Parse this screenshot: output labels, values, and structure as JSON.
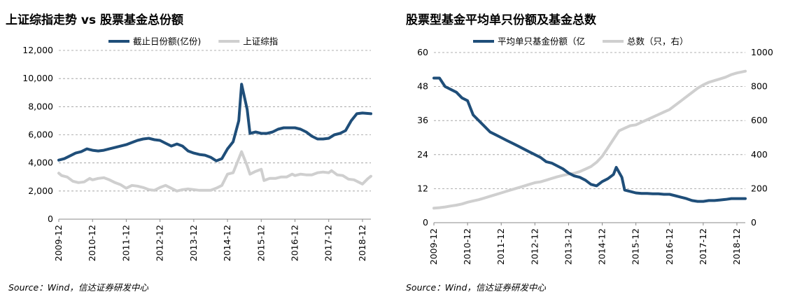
{
  "colors": {
    "dark": "#1f4e79",
    "light": "#cfcfcf",
    "grid": "#999999"
  },
  "chart_data": [
    {
      "type": "line",
      "title": "上证综指走势 vs 股票基金总份额",
      "source": "Source：Wind，信达证券研发中心",
      "x_ticks": [
        "2009-12",
        "2010-12",
        "2011-12",
        "2012-12",
        "2013-12",
        "2014-12",
        "2015-12",
        "2016-12",
        "2017-12",
        "2018-12"
      ],
      "y_ticks": [
        "12,000",
        "10,000",
        "8,000",
        "6,000",
        "4,000",
        "2,000",
        "0"
      ],
      "ylim": [
        0,
        12000
      ],
      "x_start": "2009-12",
      "x_end": "2019-03",
      "grid": true,
      "legend_position": "top",
      "series": [
        {
          "name": "截止日份额(亿份)",
          "color": "#1f4e79",
          "points": [
            [
              "2009-12",
              4200
            ],
            [
              "2010-02",
              4300
            ],
            [
              "2010-04",
              4500
            ],
            [
              "2010-06",
              4700
            ],
            [
              "2010-08",
              4800
            ],
            [
              "2010-10",
              5000
            ],
            [
              "2010-12",
              4900
            ],
            [
              "2011-02",
              4850
            ],
            [
              "2011-04",
              4900
            ],
            [
              "2011-06",
              5000
            ],
            [
              "2011-08",
              5100
            ],
            [
              "2011-10",
              5200
            ],
            [
              "2011-12",
              5300
            ],
            [
              "2012-02",
              5450
            ],
            [
              "2012-04",
              5600
            ],
            [
              "2012-06",
              5700
            ],
            [
              "2012-08",
              5750
            ],
            [
              "2012-10",
              5650
            ],
            [
              "2012-12",
              5600
            ],
            [
              "2013-02",
              5400
            ],
            [
              "2013-04",
              5200
            ],
            [
              "2013-06",
              5350
            ],
            [
              "2013-08",
              5200
            ],
            [
              "2013-10",
              4850
            ],
            [
              "2013-12",
              4700
            ],
            [
              "2014-02",
              4600
            ],
            [
              "2014-04",
              4550
            ],
            [
              "2014-06",
              4400
            ],
            [
              "2014-08",
              4150
            ],
            [
              "2014-10",
              4300
            ],
            [
              "2014-12",
              5000
            ],
            [
              "2015-02",
              5500
            ],
            [
              "2015-04",
              7000
            ],
            [
              "2015-05",
              9600
            ],
            [
              "2015-07",
              7800
            ],
            [
              "2015-08",
              6100
            ],
            [
              "2015-10",
              6200
            ],
            [
              "2015-12",
              6100
            ],
            [
              "2016-02",
              6100
            ],
            [
              "2016-04",
              6200
            ],
            [
              "2016-06",
              6400
            ],
            [
              "2016-08",
              6500
            ],
            [
              "2016-10",
              6500
            ],
            [
              "2016-12",
              6500
            ],
            [
              "2017-02",
              6400
            ],
            [
              "2017-04",
              6200
            ],
            [
              "2017-06",
              5900
            ],
            [
              "2017-08",
              5700
            ],
            [
              "2017-10",
              5700
            ],
            [
              "2017-12",
              5750
            ],
            [
              "2018-02",
              6000
            ],
            [
              "2018-04",
              6100
            ],
            [
              "2018-06",
              6300
            ],
            [
              "2018-08",
              7000
            ],
            [
              "2018-10",
              7500
            ],
            [
              "2018-12",
              7550
            ],
            [
              "2019-03",
              7500
            ]
          ]
        },
        {
          "name": "上证综指",
          "color": "#cfcfcf",
          "points": [
            [
              "2009-12",
              3270
            ],
            [
              "2010-01",
              3100
            ],
            [
              "2010-03",
              3000
            ],
            [
              "2010-05",
              2700
            ],
            [
              "2010-07",
              2600
            ],
            [
              "2010-09",
              2650
            ],
            [
              "2010-11",
              2900
            ],
            [
              "2010-12",
              2800
            ],
            [
              "2011-02",
              2900
            ],
            [
              "2011-04",
              2950
            ],
            [
              "2011-06",
              2800
            ],
            [
              "2011-08",
              2600
            ],
            [
              "2011-10",
              2450
            ],
            [
              "2011-12",
              2200
            ],
            [
              "2012-02",
              2400
            ],
            [
              "2012-04",
              2350
            ],
            [
              "2012-06",
              2250
            ],
            [
              "2012-08",
              2100
            ],
            [
              "2012-10",
              2050
            ],
            [
              "2012-12",
              2250
            ],
            [
              "2013-02",
              2400
            ],
            [
              "2013-04",
              2200
            ],
            [
              "2013-06",
              2000
            ],
            [
              "2013-08",
              2100
            ],
            [
              "2013-10",
              2150
            ],
            [
              "2013-12",
              2100
            ],
            [
              "2014-02",
              2050
            ],
            [
              "2014-04",
              2050
            ],
            [
              "2014-06",
              2050
            ],
            [
              "2014-08",
              2200
            ],
            [
              "2014-10",
              2400
            ],
            [
              "2014-12",
              3200
            ],
            [
              "2015-02",
              3300
            ],
            [
              "2015-04",
              4300
            ],
            [
              "2015-05",
              4800
            ],
            [
              "2015-07",
              3800
            ],
            [
              "2015-08",
              3200
            ],
            [
              "2015-10",
              3400
            ],
            [
              "2015-12",
              3550
            ],
            [
              "2016-01",
              2750
            ],
            [
              "2016-03",
              2900
            ],
            [
              "2016-05",
              2900
            ],
            [
              "2016-07",
              3000
            ],
            [
              "2016-09",
              3000
            ],
            [
              "2016-11",
              3200
            ],
            [
              "2016-12",
              3100
            ],
            [
              "2017-02",
              3200
            ],
            [
              "2017-04",
              3150
            ],
            [
              "2017-06",
              3150
            ],
            [
              "2017-08",
              3300
            ],
            [
              "2017-10",
              3350
            ],
            [
              "2017-12",
              3300
            ],
            [
              "2018-01",
              3450
            ],
            [
              "2018-03",
              3150
            ],
            [
              "2018-05",
              3100
            ],
            [
              "2018-07",
              2850
            ],
            [
              "2018-09",
              2800
            ],
            [
              "2018-11",
              2600
            ],
            [
              "2018-12",
              2500
            ],
            [
              "2019-02",
              2900
            ],
            [
              "2019-03",
              3050
            ]
          ]
        }
      ]
    },
    {
      "type": "line",
      "title": "股票型基金平均单只份额及基金总数",
      "source": "Source：Wind，信达证券研发中心",
      "x_ticks": [
        "2009-12",
        "2010-12",
        "2011-12",
        "2012-12",
        "2013-12",
        "2014-12",
        "2015-12",
        "2016-12",
        "2017-12",
        "2018-12"
      ],
      "y_left_ticks": [
        "60",
        "48",
        "36",
        "24",
        "12",
        "0"
      ],
      "y_right_ticks": [
        "1000",
        "800",
        "600",
        "400",
        "200",
        "0"
      ],
      "ylim_left": [
        0,
        60
      ],
      "ylim_right": [
        0,
        1000
      ],
      "x_start": "2009-12",
      "x_end": "2019-03",
      "grid": true,
      "legend_position": "top",
      "series": [
        {
          "name": "平均单只基金份额（亿",
          "color": "#1f4e79",
          "axis": "left",
          "points": [
            [
              "2009-12",
              51
            ],
            [
              "2010-02",
              51
            ],
            [
              "2010-04",
              48
            ],
            [
              "2010-06",
              47
            ],
            [
              "2010-08",
              46
            ],
            [
              "2010-10",
              44
            ],
            [
              "2010-12",
              43
            ],
            [
              "2011-02",
              38
            ],
            [
              "2011-04",
              36
            ],
            [
              "2011-06",
              34
            ],
            [
              "2011-08",
              32
            ],
            [
              "2011-10",
              31
            ],
            [
              "2011-12",
              30
            ],
            [
              "2012-02",
              29
            ],
            [
              "2012-04",
              28
            ],
            [
              "2012-06",
              27
            ],
            [
              "2012-08",
              26
            ],
            [
              "2012-10",
              25
            ],
            [
              "2012-12",
              24
            ],
            [
              "2013-02",
              23
            ],
            [
              "2013-04",
              21.5
            ],
            [
              "2013-06",
              21
            ],
            [
              "2013-08",
              20
            ],
            [
              "2013-10",
              19
            ],
            [
              "2013-12",
              17.5
            ],
            [
              "2014-02",
              16.5
            ],
            [
              "2014-04",
              16
            ],
            [
              "2014-06",
              15
            ],
            [
              "2014-08",
              13.5
            ],
            [
              "2014-10",
              13
            ],
            [
              "2014-12",
              14.5
            ],
            [
              "2015-02",
              15.5
            ],
            [
              "2015-04",
              17
            ],
            [
              "2015-05",
              19.5
            ],
            [
              "2015-07",
              16
            ],
            [
              "2015-08",
              11.5
            ],
            [
              "2015-10",
              11
            ],
            [
              "2015-12",
              10.5
            ],
            [
              "2016-02",
              10.3
            ],
            [
              "2016-04",
              10.3
            ],
            [
              "2016-06",
              10.2
            ],
            [
              "2016-08",
              10.2
            ],
            [
              "2016-10",
              10
            ],
            [
              "2016-12",
              10
            ],
            [
              "2017-02",
              9.5
            ],
            [
              "2017-04",
              9
            ],
            [
              "2017-06",
              8.5
            ],
            [
              "2017-08",
              7.8
            ],
            [
              "2017-10",
              7.5
            ],
            [
              "2017-12",
              7.5
            ],
            [
              "2018-02",
              7.8
            ],
            [
              "2018-04",
              7.8
            ],
            [
              "2018-06",
              8
            ],
            [
              "2018-08",
              8.2
            ],
            [
              "2018-10",
              8.5
            ],
            [
              "2018-12",
              8.5
            ],
            [
              "2019-03",
              8.5
            ]
          ]
        },
        {
          "name": "总数（只，右）",
          "color": "#cfcfcf",
          "axis": "right",
          "points": [
            [
              "2009-12",
              85
            ],
            [
              "2010-02",
              88
            ],
            [
              "2010-04",
              92
            ],
            [
              "2010-06",
              98
            ],
            [
              "2010-08",
              103
            ],
            [
              "2010-10",
              110
            ],
            [
              "2010-12",
              120
            ],
            [
              "2011-02",
              128
            ],
            [
              "2011-04",
              135
            ],
            [
              "2011-06",
              145
            ],
            [
              "2011-08",
              155
            ],
            [
              "2011-10",
              165
            ],
            [
              "2011-12",
              175
            ],
            [
              "2012-02",
              185
            ],
            [
              "2012-04",
              195
            ],
            [
              "2012-06",
              205
            ],
            [
              "2012-08",
              215
            ],
            [
              "2012-10",
              225
            ],
            [
              "2012-12",
              235
            ],
            [
              "2013-02",
              240
            ],
            [
              "2013-04",
              250
            ],
            [
              "2013-06",
              260
            ],
            [
              "2013-08",
              270
            ],
            [
              "2013-10",
              278
            ],
            [
              "2013-12",
              285
            ],
            [
              "2014-02",
              290
            ],
            [
              "2014-04",
              300
            ],
            [
              "2014-06",
              315
            ],
            [
              "2014-08",
              330
            ],
            [
              "2014-10",
              355
            ],
            [
              "2014-12",
              390
            ],
            [
              "2015-02",
              440
            ],
            [
              "2015-04",
              490
            ],
            [
              "2015-06",
              540
            ],
            [
              "2015-08",
              555
            ],
            [
              "2015-10",
              570
            ],
            [
              "2015-12",
              575
            ],
            [
              "2016-02",
              590
            ],
            [
              "2016-04",
              605
            ],
            [
              "2016-06",
              620
            ],
            [
              "2016-08",
              635
            ],
            [
              "2016-10",
              650
            ],
            [
              "2016-12",
              665
            ],
            [
              "2017-02",
              690
            ],
            [
              "2017-04",
              715
            ],
            [
              "2017-06",
              740
            ],
            [
              "2017-08",
              765
            ],
            [
              "2017-10",
              790
            ],
            [
              "2017-12",
              810
            ],
            [
              "2018-02",
              825
            ],
            [
              "2018-04",
              835
            ],
            [
              "2018-06",
              845
            ],
            [
              "2018-08",
              855
            ],
            [
              "2018-10",
              870
            ],
            [
              "2018-12",
              880
            ],
            [
              "2019-03",
              890
            ]
          ]
        }
      ]
    }
  ]
}
